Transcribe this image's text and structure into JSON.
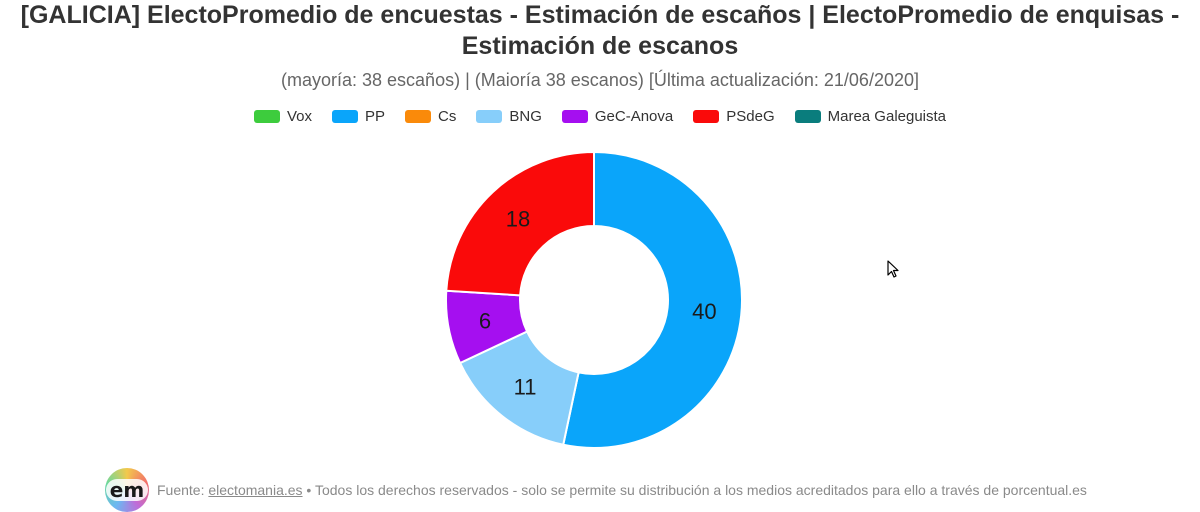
{
  "chart_data": {
    "type": "pie",
    "subtype": "donut",
    "title": "[GALICIA] ElectoPromedio de encuestas - Estimación de escaños | ElectoPromedio de enquisas - Estimación de escanos",
    "title_line1": "[GALICIA] ElectoPromedio de encuestas - Estimación de escaños | ElectoPromedio de enquisas -",
    "title_line2": "Estimación de escanos",
    "subtitle": "(mayoría: 38 escaños) | (Maioría 38 escanos) [Última actualización: 21/06/2020]",
    "legend_position": "top",
    "series": [
      {
        "name": "Vox",
        "value": 0,
        "color": "#3dcc3d"
      },
      {
        "name": "PP",
        "value": 40,
        "color": "#0aa5fa"
      },
      {
        "name": "Cs",
        "value": 0,
        "color": "#fa8a0a"
      },
      {
        "name": "BNG",
        "value": 11,
        "color": "#87cefa"
      },
      {
        "name": "GeC-Anova",
        "value": 6,
        "color": "#a50ff0"
      },
      {
        "name": "PSdeG",
        "value": 18,
        "color": "#fa0a0a"
      },
      {
        "name": "Marea Galeguista",
        "value": 0,
        "color": "#0a7d7d"
      }
    ]
  },
  "footer": {
    "logo_text": "em",
    "source_prefix": "Fuente: ",
    "source_link": "electomania.es",
    "source_rest": " • Todos los derechos reservados - solo se permite su distribución a los medios acreditados para ello a través de porcentual.es"
  }
}
